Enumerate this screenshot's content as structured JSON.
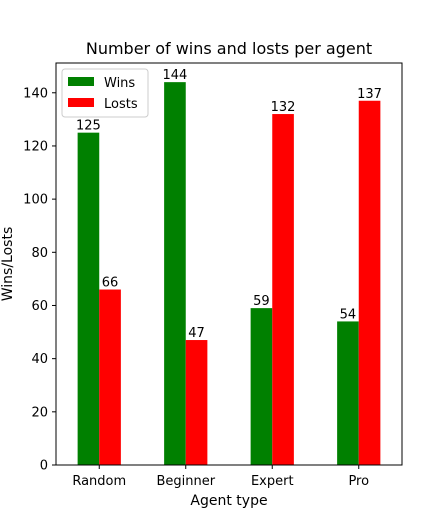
{
  "chart_data": {
    "type": "bar",
    "title": "Number of wins and losts per agent",
    "xlabel": "Agent type",
    "ylabel": "Wins/Losts",
    "categories": [
      "Random",
      "Beginner",
      "Expert",
      "Pro"
    ],
    "series": [
      {
        "name": "Wins",
        "values": [
          125,
          144,
          59,
          54
        ],
        "color": "#008000"
      },
      {
        "name": "Losts",
        "values": [
          66,
          47,
          132,
          137
        ],
        "color": "#ff0000"
      }
    ],
    "ylim": [
      0,
      151.2
    ],
    "yticks": [
      0,
      20,
      40,
      60,
      80,
      100,
      120,
      140
    ],
    "grid": false,
    "legend_position": "top-left",
    "data_labels": true
  }
}
